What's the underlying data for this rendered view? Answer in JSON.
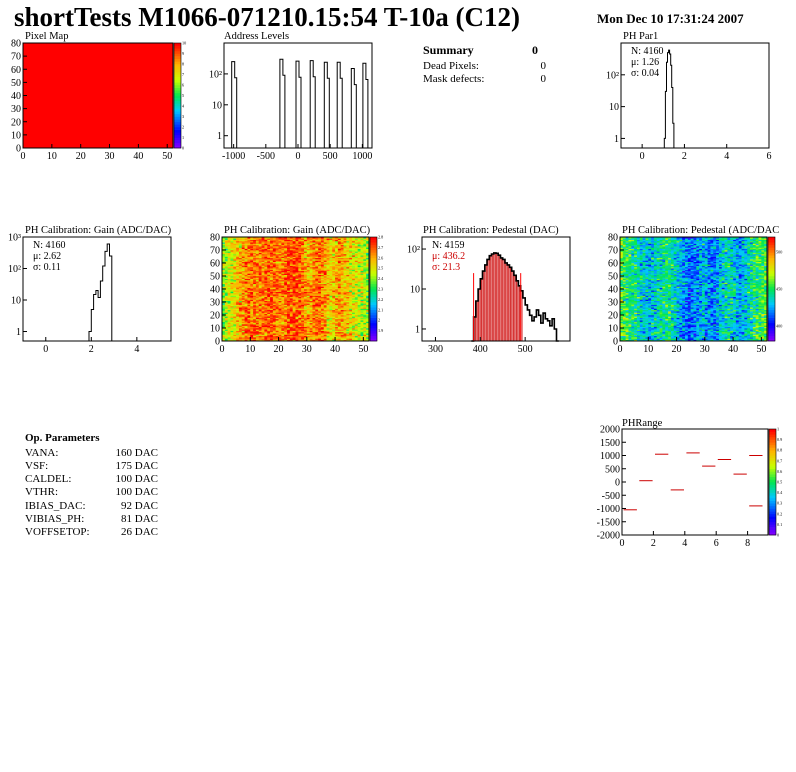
{
  "header": {
    "title": "shortTests M1066-071210.15:54 T-10a (C12)",
    "date": "Mon Dec 10 17:31:24 2007"
  },
  "summary": {
    "title": "Summary",
    "value": "0",
    "rows": [
      {
        "label": "Dead Pixels:",
        "value": "0"
      },
      {
        "label": "Mask defects:",
        "value": "0"
      }
    ]
  },
  "op_parameters": {
    "title": "Op. Parameters",
    "rows": [
      {
        "label": "VANA:",
        "value": "160 DAC"
      },
      {
        "label": "VSF:",
        "value": "175 DAC"
      },
      {
        "label": "CALDEL:",
        "value": "100 DAC"
      },
      {
        "label": "VTHR:",
        "value": "100 DAC"
      },
      {
        "label": "IBIAS_DAC:",
        "value": "92 DAC"
      },
      {
        "label": "VIBIAS_PH:",
        "value": "81 DAC"
      },
      {
        "label": "VOFFSETOP:",
        "value": "26 DAC"
      }
    ]
  },
  "colors": {
    "red": "#ff0000",
    "dark_red": "#cc0000"
  },
  "chart_data": [
    {
      "id": "pixel-map",
      "type": "heatmap",
      "title": "Pixel Map",
      "xlim": [
        0,
        52
      ],
      "ylim": [
        0,
        80
      ],
      "xticks": [
        "0",
        "10",
        "20",
        "30",
        "40",
        "50"
      ],
      "yticks": [
        "0",
        "10",
        "20",
        "30",
        "40",
        "50",
        "60",
        "70",
        "80"
      ],
      "fill_value": 10,
      "zlim": [
        0,
        10
      ],
      "zticks": [
        "0",
        "1",
        "2",
        "3",
        "4",
        "5",
        "6",
        "7",
        "8",
        "9",
        "10"
      ]
    },
    {
      "id": "address-levels",
      "type": "line",
      "title": "Address Levels",
      "log_y": true,
      "xlim": [
        -1150,
        1150
      ],
      "ylim": [
        0.4,
        1000
      ],
      "xticks": [
        "-1000",
        "-500",
        "0",
        "500",
        "1000"
      ],
      "yticks": [
        {
          "v": 1,
          "label": "1"
        },
        {
          "v": 10,
          "label": "10"
        },
        {
          "v": 100,
          "label": "10²"
        }
      ],
      "peaks": [
        {
          "x": -1000,
          "y": 250
        },
        {
          "x": -250,
          "y": 300
        },
        {
          "x": 0,
          "y": 260
        },
        {
          "x": 220,
          "y": 270
        },
        {
          "x": 440,
          "y": 240
        },
        {
          "x": 640,
          "y": 240
        },
        {
          "x": 860,
          "y": 150
        },
        {
          "x": 1040,
          "y": 220
        }
      ]
    },
    {
      "id": "ph-par1",
      "type": "line",
      "title": "PH Par1",
      "log_y": true,
      "xlim": [
        -1,
        6
      ],
      "ylim": [
        0.5,
        1000
      ],
      "xticks": [
        "0",
        "2",
        "4",
        "6"
      ],
      "yticks": [
        {
          "v": 1,
          "label": "1"
        },
        {
          "v": 10,
          "label": "10"
        },
        {
          "v": 100,
          "label": "10²"
        }
      ],
      "stats": [
        "N: 4160",
        "μ: 1.26",
        "σ: 0.04"
      ],
      "x": [
        1.05,
        1.1,
        1.15,
        1.2,
        1.25,
        1.3,
        1.35,
        1.4,
        1.45,
        1.5
      ],
      "y": [
        1,
        30,
        250,
        500,
        600,
        450,
        200,
        40,
        3,
        0
      ]
    },
    {
      "id": "gain-1d",
      "type": "line",
      "title": "PH Calibration: Gain (ADC/DAC)",
      "log_y": true,
      "xlim": [
        -1,
        5.5
      ],
      "ylim": [
        0.5,
        1000
      ],
      "xticks": [
        "0",
        "2",
        "4"
      ],
      "yticks": [
        {
          "v": 1,
          "label": "1"
        },
        {
          "v": 10,
          "label": "10"
        },
        {
          "v": 100,
          "label": "10²"
        },
        {
          "v": 1000,
          "label": "10³"
        }
      ],
      "stats": [
        "N: 4160",
        "μ: 2.62",
        "σ: 0.11"
      ],
      "x": [
        1.9,
        2.0,
        2.1,
        2.2,
        2.3,
        2.4,
        2.5,
        2.6,
        2.7,
        2.8,
        2.9
      ],
      "y": [
        1,
        5,
        15,
        20,
        12,
        40,
        120,
        350,
        600,
        250,
        0
      ]
    },
    {
      "id": "gain-map",
      "type": "heatmap",
      "title": "PH Calibration: Gain (ADC/DAC)",
      "xlim": [
        0,
        52
      ],
      "ylim": [
        0,
        80
      ],
      "xticks": [
        "0",
        "10",
        "20",
        "30",
        "40",
        "50"
      ],
      "yticks": [
        "0",
        "10",
        "20",
        "30",
        "40",
        "50",
        "60",
        "70",
        "80"
      ],
      "zlim": [
        1.8,
        2.8
      ],
      "zticks": [
        "1.9",
        "2",
        "2.1",
        "2.2",
        "2.3",
        "2.4",
        "2.5",
        "2.6",
        "2.7",
        "2.8"
      ],
      "column_means": [
        2.4,
        2.45,
        2.48,
        2.5,
        2.52,
        2.55,
        2.58,
        2.62,
        2.65,
        2.68,
        2.68,
        2.67,
        2.66,
        2.66,
        2.68,
        2.7,
        2.71,
        2.7,
        2.68,
        2.66,
        2.65,
        2.66,
        2.7,
        2.72,
        2.74,
        2.73,
        2.72,
        2.7,
        2.66,
        2.62,
        2.6,
        2.62,
        2.66,
        2.68,
        2.67,
        2.65,
        2.62,
        2.58,
        2.55,
        2.56,
        2.58,
        2.62,
        2.6,
        2.58,
        2.56,
        2.52,
        2.5,
        2.48,
        2.46,
        2.45,
        2.44,
        2.42
      ]
    },
    {
      "id": "pedestal-1d",
      "type": "line",
      "title": "PH Calibration: Pedestal (DAC)",
      "log_y": true,
      "xlim": [
        270,
        600
      ],
      "ylim": [
        0.5,
        200
      ],
      "xticks": [
        "300",
        "400",
        "500"
      ],
      "yticks": [
        {
          "v": 1,
          "label": "1"
        },
        {
          "v": 10,
          "label": "10"
        },
        {
          "v": 100,
          "label": "10²"
        }
      ],
      "stats": [
        "N: 4159",
        "μ: 436.2",
        "σ: 21.3"
      ],
      "fit_range": [
        385,
        490
      ],
      "x": [
        380,
        385,
        390,
        395,
        400,
        405,
        410,
        415,
        420,
        425,
        430,
        435,
        440,
        445,
        450,
        455,
        460,
        465,
        470,
        475,
        480,
        485,
        490,
        495,
        500,
        505,
        510,
        515,
        520,
        525,
        530,
        535,
        540,
        545,
        550,
        555,
        560,
        565,
        570
      ],
      "y": [
        0,
        2,
        5,
        10,
        18,
        28,
        40,
        55,
        68,
        75,
        80,
        78,
        70,
        60,
        55,
        45,
        40,
        35,
        28,
        22,
        16,
        12,
        9,
        6,
        4,
        3,
        2.2,
        1.6,
        2,
        3,
        2.2,
        1.4,
        2.5,
        1.8,
        1.6,
        1.2,
        1.8,
        1,
        0
      ]
    },
    {
      "id": "pedestal-map",
      "type": "heatmap",
      "title": "PH Calibration: Pedestal (ADC/DAC",
      "xlim": [
        0,
        52
      ],
      "ylim": [
        0,
        80
      ],
      "xticks": [
        "0",
        "10",
        "20",
        "30",
        "40",
        "50"
      ],
      "yticks": [
        "0",
        "10",
        "20",
        "30",
        "40",
        "50",
        "60",
        "70",
        "80"
      ],
      "zlim": [
        380,
        520
      ],
      "zticks": [
        "400",
        "450",
        "500"
      ],
      "column_means": [
        460,
        455,
        450,
        448,
        446,
        444,
        440,
        436,
        434,
        432,
        430,
        432,
        436,
        440,
        442,
        445,
        446,
        445,
        440,
        435,
        430,
        426,
        422,
        418,
        415,
        416,
        420,
        424,
        428,
        430,
        425,
        420,
        418,
        420,
        426,
        430,
        434,
        436,
        438,
        436,
        432,
        428,
        426,
        428,
        432,
        438,
        442,
        446,
        450,
        452,
        454,
        456
      ]
    },
    {
      "id": "ph-range",
      "type": "scatter",
      "title": "PHRange",
      "xlim": [
        0,
        9.3
      ],
      "ylim": [
        -2000,
        2000
      ],
      "xticks": [
        "0",
        "2",
        "4",
        "6",
        "8"
      ],
      "yticks": [
        "-2000",
        "-1500",
        "-1000",
        "-500",
        "0",
        "500",
        "1000",
        "1500",
        "2000"
      ],
      "zticks": [
        "0",
        "0.1",
        "0.2",
        "0.3",
        "0.4",
        "0.5",
        "0.6",
        "0.7",
        "0.8",
        "0.9",
        "1"
      ],
      "segments": [
        {
          "x0": 0,
          "x1": 1,
          "y": -1050
        },
        {
          "x0": 1,
          "x1": 2,
          "y": 50
        },
        {
          "x0": 2,
          "x1": 3,
          "y": 1050
        },
        {
          "x0": 3,
          "x1": 4,
          "y": -300
        },
        {
          "x0": 4,
          "x1": 5,
          "y": 1100
        },
        {
          "x0": 5,
          "x1": 6,
          "y": 600
        },
        {
          "x0": 6,
          "x1": 7,
          "y": 850
        },
        {
          "x0": 7,
          "x1": 8,
          "y": 300
        },
        {
          "x0": 8,
          "x1": 9,
          "y": 1000
        },
        {
          "x0": 8,
          "x1": 9,
          "y": -900
        }
      ]
    }
  ]
}
